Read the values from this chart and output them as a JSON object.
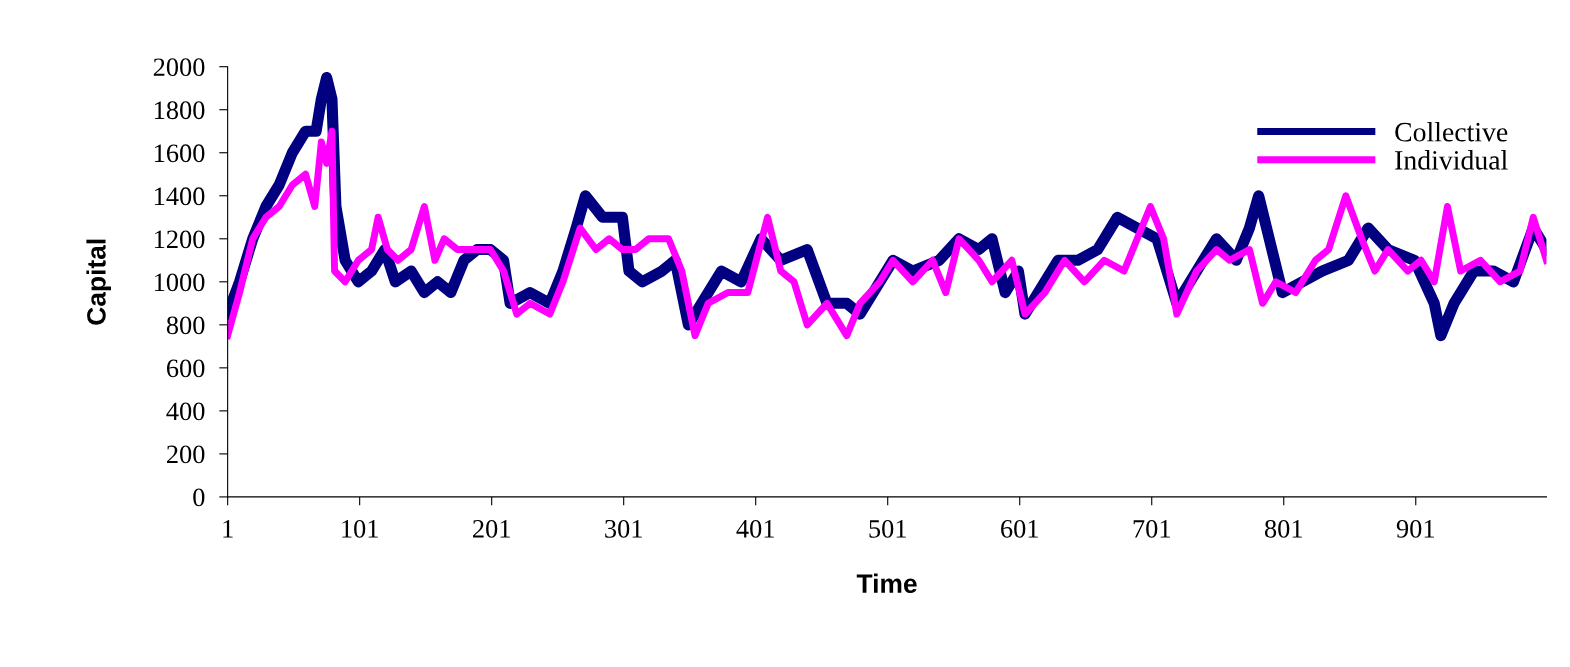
{
  "chart_data": {
    "type": "line",
    "xlabel": "Time",
    "ylabel": "Capital",
    "xlim": [
      1,
      1000
    ],
    "xticks": [
      1,
      101,
      201,
      301,
      401,
      501,
      601,
      701,
      801,
      901
    ],
    "ylim": [
      0,
      2000
    ],
    "yticks": [
      0,
      200,
      400,
      600,
      800,
      1000,
      1200,
      1400,
      1600,
      1800,
      2000
    ],
    "grid": false,
    "legend": "top right",
    "marker": "none",
    "line_style": "solid",
    "series": [
      {
        "name": "Collective",
        "color": "#000080",
        "x": [
          1,
          10,
          20,
          30,
          40,
          50,
          60,
          68,
          72,
          76,
          80,
          83,
          90,
          100,
          110,
          120,
          128,
          140,
          150,
          160,
          170,
          180,
          190,
          200,
          210,
          215,
          230,
          245,
          255,
          265,
          272,
          285,
          300,
          305,
          315,
          330,
          340,
          350,
          360,
          375,
          390,
          405,
          420,
          440,
          455,
          470,
          480,
          495,
          505,
          520,
          540,
          555,
          570,
          580,
          590,
          600,
          605,
          615,
          630,
          645,
          660,
          675,
          690,
          705,
          720,
          735,
          750,
          765,
          775,
          782,
          790,
          800,
          815,
          830,
          850,
          865,
          880,
          900,
          915,
          920,
          930,
          945,
          960,
          975,
          990,
          1000
        ],
        "values": [
          850,
          1000,
          1200,
          1350,
          1450,
          1600,
          1700,
          1700,
          1850,
          1950,
          1850,
          1350,
          1100,
          1000,
          1050,
          1150,
          1000,
          1050,
          950,
          1000,
          950,
          1100,
          1150,
          1150,
          1100,
          900,
          950,
          900,
          1050,
          1250,
          1400,
          1300,
          1300,
          1050,
          1000,
          1050,
          1100,
          800,
          900,
          1050,
          1000,
          1200,
          1100,
          1150,
          900,
          900,
          850,
          1000,
          1100,
          1050,
          1100,
          1200,
          1150,
          1200,
          950,
          1050,
          850,
          950,
          1100,
          1100,
          1150,
          1300,
          1250,
          1200,
          900,
          1050,
          1200,
          1100,
          1250,
          1400,
          1200,
          950,
          1000,
          1050,
          1100,
          1250,
          1150,
          1100,
          900,
          750,
          900,
          1050,
          1050,
          1000,
          1250,
          1150
        ]
      },
      {
        "name": "Individual",
        "color": "#ff00ff",
        "x": [
          1,
          10,
          20,
          30,
          40,
          50,
          60,
          67,
          72,
          76,
          80,
          82,
          90,
          100,
          110,
          115,
          122,
          130,
          140,
          150,
          158,
          165,
          175,
          185,
          200,
          210,
          220,
          230,
          245,
          255,
          268,
          280,
          290,
          300,
          310,
          320,
          335,
          345,
          355,
          365,
          380,
          395,
          410,
          420,
          430,
          440,
          455,
          470,
          480,
          495,
          505,
          520,
          535,
          545,
          555,
          570,
          580,
          595,
          605,
          620,
          635,
          650,
          665,
          680,
          700,
          710,
          720,
          735,
          750,
          760,
          775,
          785,
          795,
          810,
          825,
          835,
          848,
          860,
          870,
          880,
          895,
          905,
          915,
          925,
          935,
          950,
          965,
          980,
          990,
          1000
        ],
        "values": [
          750,
          950,
          1200,
          1300,
          1350,
          1450,
          1500,
          1350,
          1650,
          1550,
          1700,
          1050,
          1000,
          1100,
          1150,
          1300,
          1150,
          1100,
          1150,
          1350,
          1100,
          1200,
          1150,
          1150,
          1150,
          1050,
          850,
          900,
          850,
          1000,
          1250,
          1150,
          1200,
          1150,
          1150,
          1200,
          1200,
          1050,
          750,
          900,
          950,
          950,
          1300,
          1050,
          1000,
          800,
          900,
          750,
          900,
          1000,
          1100,
          1000,
          1100,
          950,
          1200,
          1100,
          1000,
          1100,
          850,
          950,
          1100,
          1000,
          1100,
          1050,
          1350,
          1200,
          850,
          1050,
          1150,
          1100,
          1150,
          900,
          1000,
          950,
          1100,
          1150,
          1400,
          1200,
          1050,
          1150,
          1050,
          1100,
          1000,
          1350,
          1050,
          1100,
          1000,
          1050,
          1300,
          1100
        ]
      }
    ]
  }
}
